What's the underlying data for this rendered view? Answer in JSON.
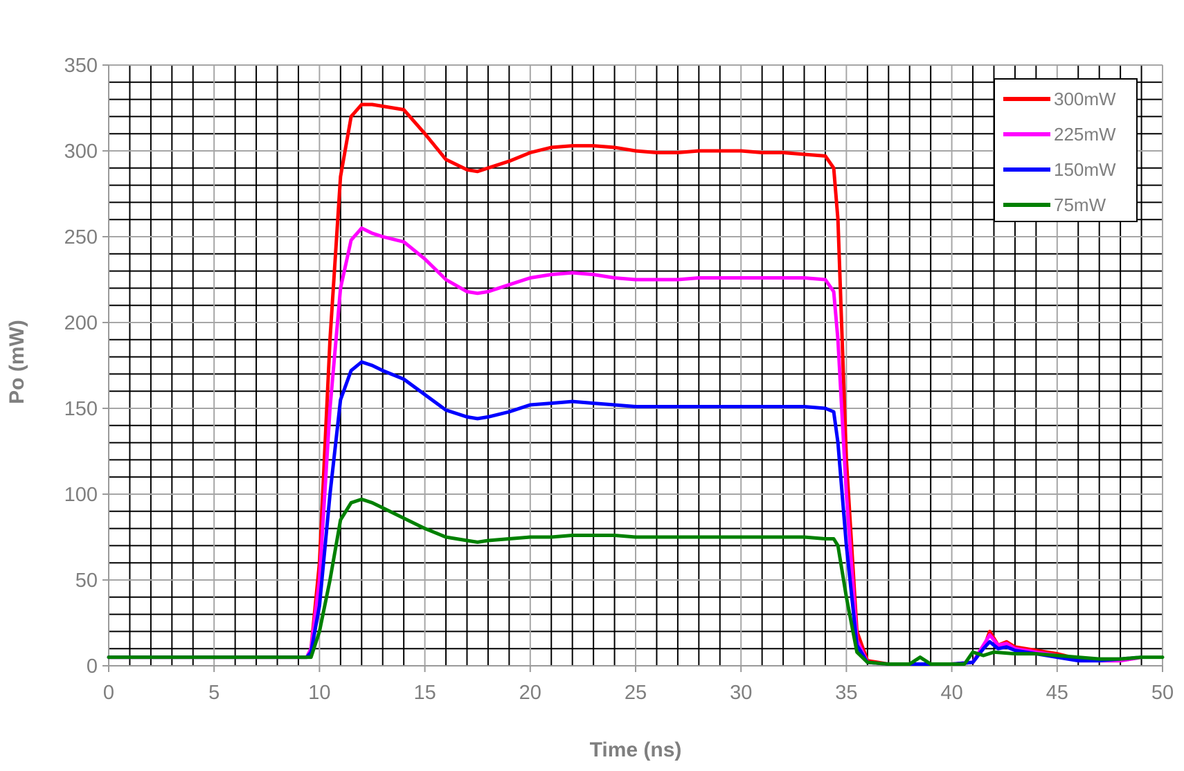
{
  "chart_data": {
    "type": "line",
    "xlabel": "Time (ns)",
    "ylabel": "Po (mW)",
    "xlim": [
      0,
      50
    ],
    "ylim": [
      0,
      350
    ],
    "x_ticks": [
      0,
      5,
      10,
      15,
      20,
      25,
      30,
      35,
      40,
      45,
      50
    ],
    "y_ticks": [
      0,
      50,
      100,
      150,
      200,
      250,
      300,
      350
    ],
    "x_minor_step": 1,
    "y_minor_step": 10,
    "grid": true,
    "legend_position": "top-right",
    "series": [
      {
        "name": "300mW",
        "color": "#ff0000",
        "x": [
          0,
          9.4,
          9.6,
          10,
          10.5,
          11,
          11.5,
          12,
          12.5,
          13,
          14,
          15,
          16,
          17,
          17.5,
          18,
          19,
          20,
          21,
          22,
          23,
          24,
          25,
          26,
          27,
          28,
          29,
          30,
          31,
          32,
          33,
          34,
          34.4,
          34.6,
          35,
          35.5,
          36,
          37,
          38,
          39,
          40,
          41,
          41.5,
          41.8,
          42.2,
          42.6,
          43,
          44,
          45,
          46,
          47,
          48,
          49
        ],
        "y": [
          5,
          5,
          10,
          60,
          190,
          285,
          320,
          327,
          327,
          326,
          324,
          310,
          295,
          289,
          288,
          290,
          294,
          299,
          302,
          303,
          303,
          302,
          300,
          299,
          299,
          300,
          300,
          300,
          299,
          299,
          298,
          297,
          290,
          260,
          120,
          20,
          3,
          1,
          1,
          1,
          1,
          2,
          10,
          20,
          12,
          14,
          11,
          9,
          7,
          4,
          3,
          3,
          5
        ]
      },
      {
        "name": "225mW",
        "color": "#ff00ff",
        "x": [
          0,
          9.4,
          9.6,
          10,
          10.5,
          11,
          11.5,
          12,
          12.5,
          13,
          14,
          15,
          16,
          17,
          17.5,
          18,
          19,
          20,
          21,
          22,
          23,
          24,
          25,
          26,
          27,
          28,
          29,
          30,
          31,
          32,
          33,
          34,
          34.4,
          34.6,
          35,
          35.5,
          36,
          37,
          38,
          39,
          40,
          41,
          41.5,
          41.8,
          42.2,
          42.6,
          43,
          44,
          45,
          46,
          47,
          48,
          49
        ],
        "y": [
          5,
          5,
          10,
          50,
          150,
          220,
          248,
          255,
          252,
          250,
          247,
          237,
          225,
          218,
          217,
          218,
          222,
          226,
          228,
          229,
          228,
          226,
          225,
          225,
          225,
          226,
          226,
          226,
          226,
          226,
          226,
          225,
          218,
          190,
          100,
          15,
          2,
          1,
          1,
          1,
          1,
          2,
          12,
          18,
          12,
          13,
          10,
          8,
          6,
          3,
          3,
          3,
          5
        ]
      },
      {
        "name": "150mW",
        "color": "#0000ff",
        "x": [
          0,
          9.4,
          9.6,
          10,
          10.5,
          11,
          11.5,
          12,
          12.5,
          13,
          14,
          15,
          16,
          17,
          17.5,
          18,
          19,
          20,
          21,
          22,
          23,
          24,
          25,
          26,
          27,
          28,
          29,
          30,
          31,
          32,
          33,
          34,
          34.4,
          34.6,
          35,
          35.5,
          36,
          37,
          38,
          39,
          40,
          41,
          41.5,
          41.8,
          42.2,
          42.6,
          43,
          44,
          45,
          46,
          47,
          48,
          49
        ],
        "y": [
          5,
          5,
          8,
          35,
          100,
          155,
          172,
          177,
          175,
          172,
          167,
          158,
          149,
          145,
          144,
          145,
          148,
          152,
          153,
          154,
          153,
          152,
          151,
          151,
          151,
          151,
          151,
          151,
          151,
          151,
          151,
          150,
          148,
          130,
          70,
          12,
          2,
          1,
          1,
          1,
          1,
          2,
          10,
          14,
          10,
          11,
          9,
          7,
          5,
          3,
          3,
          4,
          5
        ]
      },
      {
        "name": "75mW",
        "color": "#008000",
        "x": [
          0,
          9.4,
          9.6,
          10,
          10.5,
          11,
          11.5,
          12,
          12.5,
          13,
          14,
          15,
          16,
          17,
          17.5,
          18,
          19,
          20,
          21,
          22,
          23,
          24,
          25,
          26,
          27,
          28,
          29,
          30,
          31,
          32,
          33,
          34,
          34.4,
          34.6,
          35,
          35.5,
          36,
          37,
          38,
          38.5,
          39,
          40,
          40.6,
          41,
          41.5,
          42,
          43,
          44,
          45,
          46,
          47,
          48,
          49,
          50
        ],
        "y": [
          5,
          5,
          5,
          20,
          50,
          85,
          95,
          97,
          95,
          92,
          86,
          80,
          75,
          73,
          72,
          73,
          74,
          75,
          75,
          76,
          76,
          76,
          75,
          75,
          75,
          75,
          75,
          75,
          75,
          75,
          75,
          74,
          74,
          70,
          40,
          8,
          2,
          1,
          1,
          5,
          1,
          1,
          1,
          8,
          6,
          8,
          7,
          7,
          6,
          5,
          4,
          4,
          5,
          5
        ]
      }
    ]
  }
}
